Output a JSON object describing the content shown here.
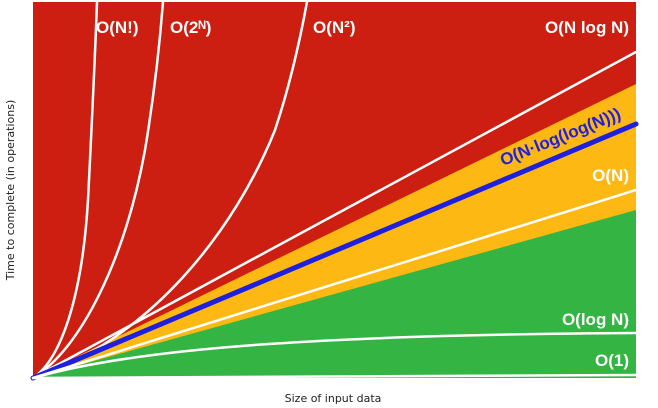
{
  "chart_data": {
    "type": "line",
    "title": "",
    "xlabel": "Size of input data",
    "ylabel": "Time to complete (in operations)",
    "grid": false,
    "legend": "none",
    "colors": {
      "red_region": "#cc1f12",
      "orange_region": "#fdb813",
      "green_region": "#33b443",
      "curve": "#ffffff",
      "highlight_curve": "#1f1fe0",
      "label_white": "#ffffff",
      "label_highlight": "#1f1fe0"
    },
    "series": [
      {
        "name": "O(N!)",
        "label_color": "label_white"
      },
      {
        "name": "O(2ᴺ)",
        "label_color": "label_white"
      },
      {
        "name": "O(N²)",
        "label_color": "label_white"
      },
      {
        "name": "O(N log N)",
        "label_color": "label_white"
      },
      {
        "name": "O(N·log(log(N)))",
        "label_color": "label_highlight"
      },
      {
        "name": "O(N)",
        "label_color": "label_white"
      },
      {
        "name": "O(log N)",
        "label_color": "label_white"
      },
      {
        "name": "O(1)",
        "label_color": "label_white"
      }
    ]
  }
}
